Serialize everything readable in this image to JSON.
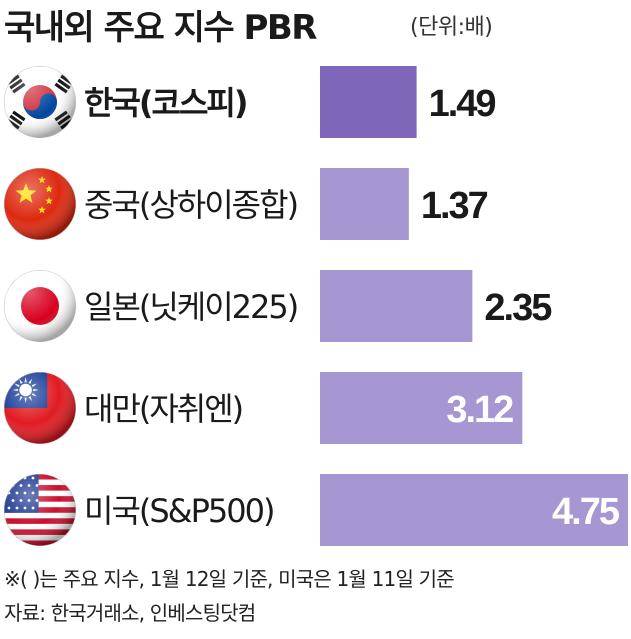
{
  "title": "국내외 주요 지수 PBR",
  "unit": "(단위:배)",
  "chart_data": {
    "type": "bar",
    "orientation": "horizontal",
    "categories": [
      "한국(코스피)",
      "중국(상하이종합)",
      "일본(닛케이225)",
      "대만(자취엔)",
      "미국(S&P500)"
    ],
    "values": [
      1.49,
      1.37,
      2.35,
      3.12,
      4.75
    ],
    "value_labels": [
      "1.49",
      "1.37",
      "2.35",
      "3.12",
      "4.75"
    ],
    "bold_categories": [
      "한국(코스피)"
    ],
    "flags": [
      "south-korea-flag-icon",
      "china-flag-icon",
      "japan-flag-icon",
      "taiwan-flag-icon",
      "usa-flag-icon"
    ],
    "colors": {
      "highlight": "#7e67b8",
      "bar": "#a696d2",
      "inside_label": "#ffffff"
    },
    "xlim": [
      0,
      4.75
    ]
  },
  "notes": {
    "line1": "※(  )는 주요 지수, 1월 12일 기준, 미국은 1월 11일 기준",
    "line2": "자료: 한국거래소, 인베스팅닷컴"
  }
}
